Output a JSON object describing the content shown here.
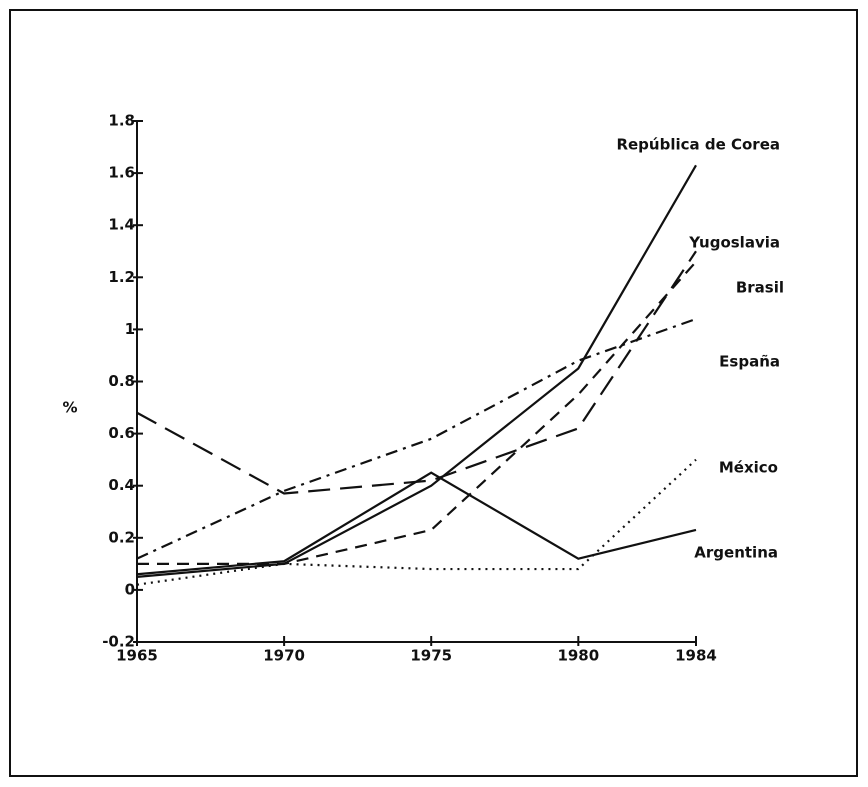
{
  "chart_data": {
    "type": "line",
    "y_label": "%",
    "x": [
      1965,
      1970,
      1975,
      1980,
      1984
    ],
    "xlim": [
      1965,
      1984
    ],
    "xticks": [
      1965,
      1970,
      1975,
      1980,
      1984
    ],
    "ylim": [
      -0.2,
      1.8
    ],
    "yticks": [
      -0.2,
      0,
      0.2,
      0.4,
      0.6,
      0.8,
      1,
      1.2,
      1.4,
      1.6,
      1.8
    ],
    "series": [
      {
        "name": "República de Corea",
        "color": "#111111",
        "dash": "solid",
        "values": [
          0.05,
          0.1,
          0.4,
          0.85,
          1.63
        ]
      },
      {
        "name": "Yugoslavia",
        "color": "#111111",
        "dash": "longdash",
        "values": [
          0.68,
          0.37,
          0.42,
          0.62,
          1.3
        ]
      },
      {
        "name": "Brasil",
        "color": "#111111",
        "dash": "dash",
        "values": [
          0.1,
          0.1,
          0.23,
          0.75,
          1.26
        ]
      },
      {
        "name": "España",
        "color": "#111111",
        "dash": "dashdot",
        "values": [
          0.12,
          0.38,
          0.58,
          0.88,
          1.04
        ]
      },
      {
        "name": "México",
        "color": "#111111",
        "dash": "dot",
        "values": [
          0.02,
          0.1,
          0.08,
          0.08,
          0.5
        ]
      },
      {
        "name": "Argentina",
        "color": "#111111",
        "dash": "solid",
        "values": [
          0.06,
          0.11,
          0.45,
          0.12,
          0.23
        ]
      }
    ]
  }
}
